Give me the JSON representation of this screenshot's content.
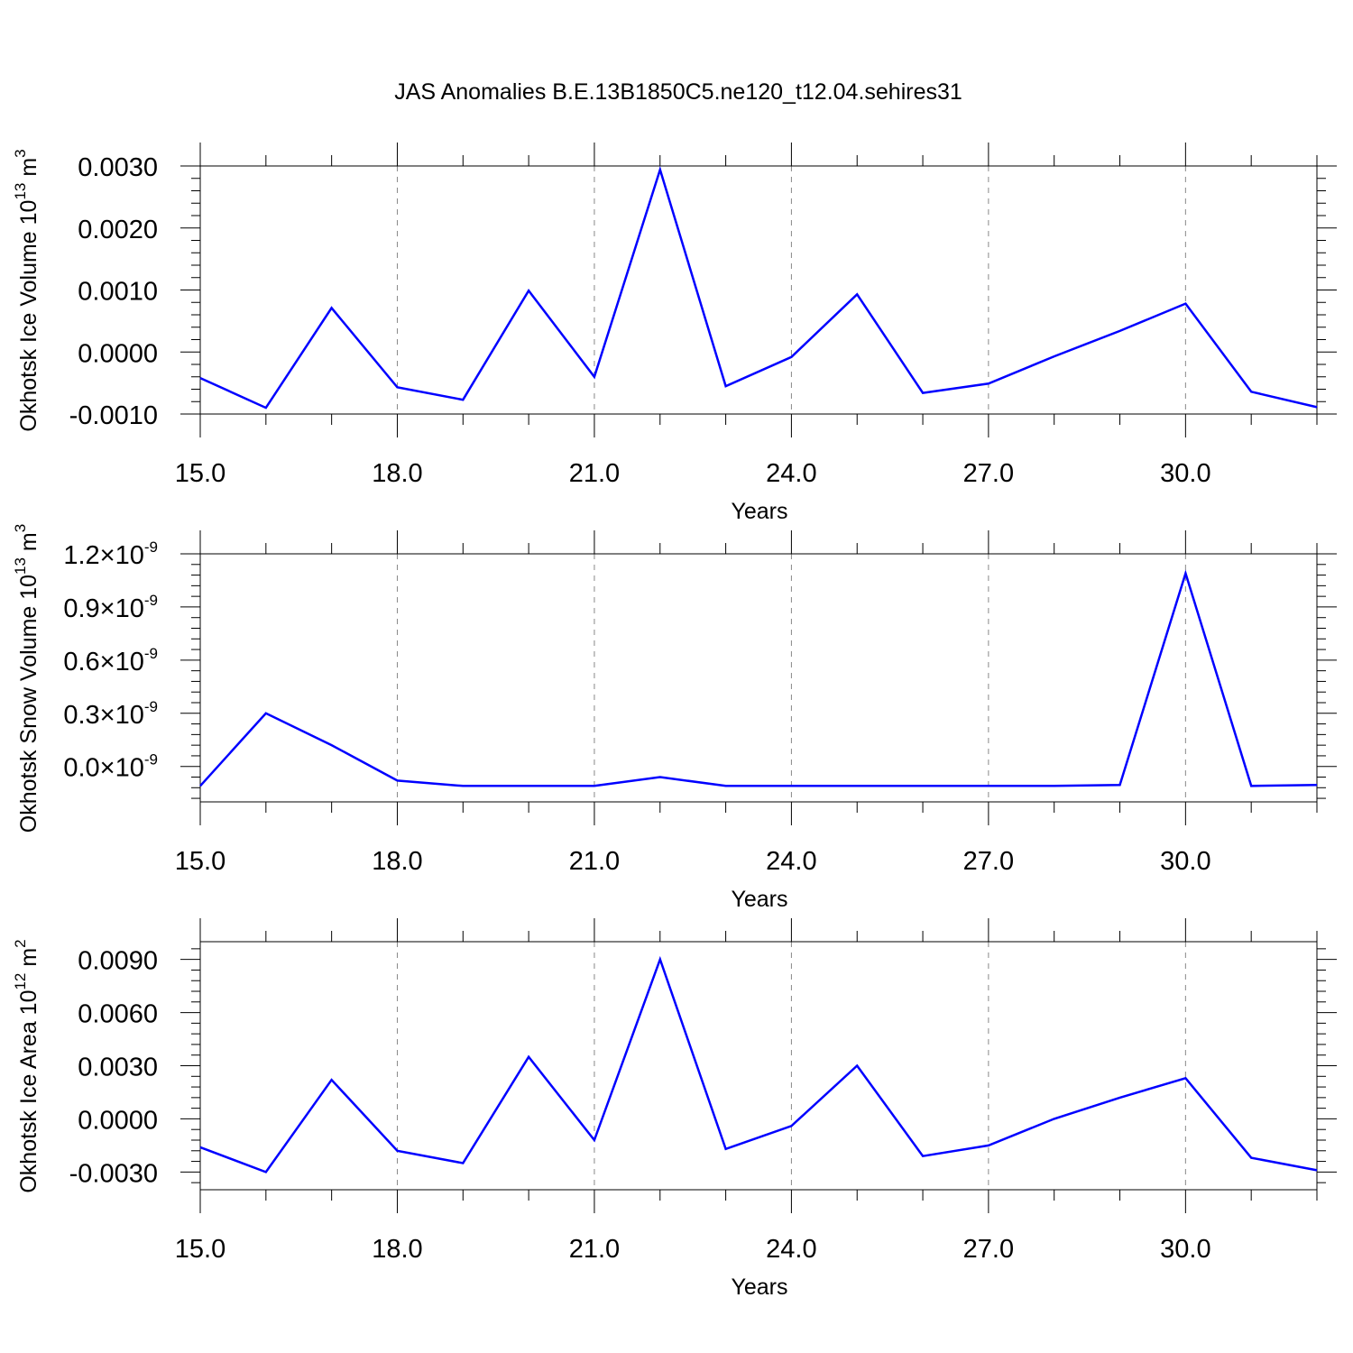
{
  "title": "JAS Anomalies B.E.13B1850C5.ne120_t12.04.sehires31",
  "chart_data": [
    {
      "type": "line",
      "ylabel": "Okhotsk Ice Volume 10",
      "ylabel_exp": "13",
      "ylabel_unit": " m",
      "ylabel_unit_exp": "3",
      "xlabel": "Years",
      "xlim": [
        15,
        32
      ],
      "ylim": [
        -0.001,
        0.003
      ],
      "xticks": [
        15,
        18,
        21,
        24,
        27,
        30
      ],
      "xtick_labels": [
        "15.0",
        "18.0",
        "21.0",
        "24.0",
        "27.0",
        "30.0"
      ],
      "yticks": [
        -0.001,
        0.0,
        0.001,
        0.002,
        0.003
      ],
      "ytick_labels": [
        "-0.0010",
        "0.0000",
        "0.0010",
        "0.0020",
        "0.0030"
      ],
      "x": [
        15,
        16,
        17,
        18,
        19,
        20,
        21,
        22,
        23,
        24,
        25,
        26,
        27,
        28,
        29,
        30,
        31,
        32
      ],
      "series": [
        {
          "values": [
            -0.00042,
            -0.0009,
            0.00071,
            -0.00057,
            -0.00077,
            0.00099,
            -0.0004,
            0.00294,
            -0.00055,
            -8e-05,
            0.00093,
            -0.00066,
            -0.00051,
            -7e-05,
            0.00034,
            0.00078,
            -0.00064,
            -0.00089
          ]
        }
      ],
      "grid": "x-dashed",
      "color": "#0000ff"
    },
    {
      "type": "line",
      "ylabel": "Okhotsk Snow Volume 10",
      "ylabel_exp": "13",
      "ylabel_unit": " m",
      "ylabel_unit_exp": "3",
      "xlabel": "Years",
      "xlim": [
        15,
        32
      ],
      "ylim": [
        -2e-10,
        1.2e-09
      ],
      "xticks": [
        15,
        18,
        21,
        24,
        27,
        30
      ],
      "xtick_labels": [
        "15.0",
        "18.0",
        "21.0",
        "24.0",
        "27.0",
        "30.0"
      ],
      "yticks": [
        0.0,
        3e-10,
        6e-10,
        9e-10,
        1.2e-09
      ],
      "ytick_labels": [
        "0.0",
        "0.3",
        "0.6",
        "0.9",
        "1.2"
      ],
      "ytick_mult": "×10",
      "ytick_exp": "-9",
      "x": [
        15,
        16,
        17,
        18,
        19,
        20,
        21,
        22,
        23,
        24,
        25,
        26,
        27,
        28,
        29,
        30,
        31,
        32
      ],
      "series": [
        {
          "values": [
            -1.1e-10,
            3e-10,
            1.2e-10,
            -8e-11,
            -1.1e-10,
            -1.1e-10,
            -1.1e-10,
            -6e-11,
            -1.1e-10,
            -1.1e-10,
            -1.1e-10,
            -1.1e-10,
            -1.1e-10,
            -1.1e-10,
            -1.05e-10,
            1.09e-09,
            -1.1e-10,
            -1.05e-10
          ]
        }
      ],
      "grid": "x-dashed",
      "color": "#0000ff"
    },
    {
      "type": "line",
      "ylabel": "Okhotsk Ice Area 10",
      "ylabel_exp": "12",
      "ylabel_unit": " m",
      "ylabel_unit_exp": "2",
      "xlabel": "Years",
      "xlim": [
        15,
        32
      ],
      "ylim": [
        -0.004,
        0.01
      ],
      "xticks": [
        15,
        18,
        21,
        24,
        27,
        30
      ],
      "xtick_labels": [
        "15.0",
        "18.0",
        "21.0",
        "24.0",
        "27.0",
        "30.0"
      ],
      "yticks": [
        -0.003,
        0.0,
        0.003,
        0.006,
        0.009
      ],
      "ytick_labels": [
        "-0.0030",
        "0.0000",
        "0.0030",
        "0.0060",
        "0.0090"
      ],
      "x": [
        15,
        16,
        17,
        18,
        19,
        20,
        21,
        22,
        23,
        24,
        25,
        26,
        27,
        28,
        29,
        30,
        31,
        32
      ],
      "series": [
        {
          "values": [
            -0.0016,
            -0.003,
            0.0022,
            -0.0018,
            -0.0025,
            0.0035,
            -0.0012,
            0.009,
            -0.0017,
            -0.0004,
            0.003,
            -0.0021,
            -0.0015,
            0.0,
            0.0012,
            0.0023,
            -0.0022,
            -0.0029
          ]
        }
      ],
      "grid": "x-dashed",
      "color": "#0000ff"
    }
  ]
}
